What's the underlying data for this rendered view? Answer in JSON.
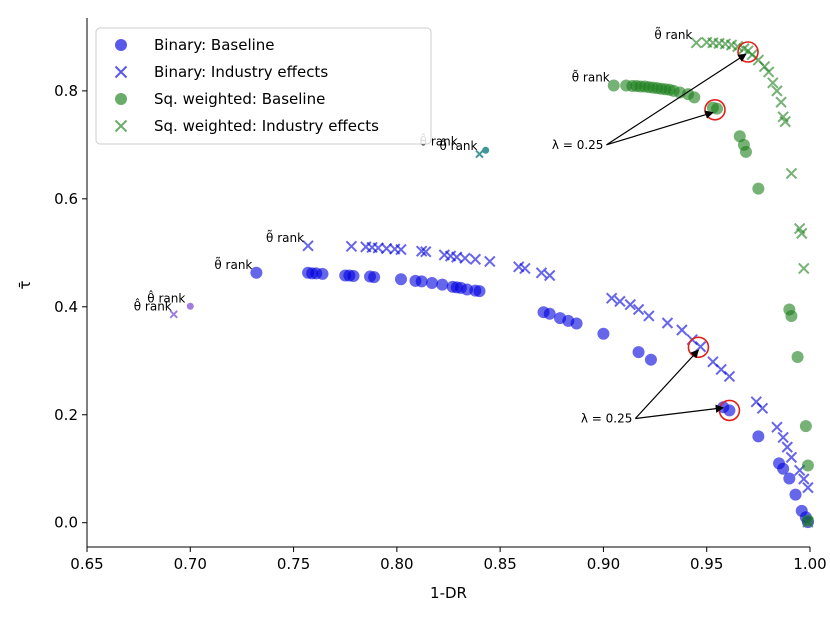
{
  "chart_data": {
    "type": "scatter",
    "title": "",
    "xlabel": "1-DR",
    "ylabel": "τ̄",
    "xlim": [
      0.65,
      1.0
    ],
    "ylim": [
      -0.045,
      0.935
    ],
    "xticks": [
      0.65,
      0.7,
      0.75,
      0.8,
      0.85,
      0.9,
      0.95,
      1.0
    ],
    "xtick_labels": [
      "0.65",
      "0.70",
      "0.75",
      "0.80",
      "0.85",
      "0.90",
      "0.95",
      "1.00"
    ],
    "yticks": [
      0.0,
      0.2,
      0.4,
      0.6,
      0.8
    ],
    "ytick_labels": [
      "0.0",
      "0.2",
      "0.4",
      "0.6",
      "0.8"
    ],
    "grid": false,
    "legend_position": "top-left",
    "colors": {
      "blue": "#0000dd",
      "green": "#1a7f1a",
      "purple": "#9370db",
      "teal": "#2a8c8c",
      "red": "#e0201b"
    },
    "series": [
      {
        "name": "Binary: Baseline",
        "marker": "circle",
        "color": "#0000dd",
        "points": [
          [
            0.732,
            0.463
          ],
          [
            0.757,
            0.463
          ],
          [
            0.759,
            0.462
          ],
          [
            0.761,
            0.462
          ],
          [
            0.764,
            0.461
          ],
          [
            0.775,
            0.458
          ],
          [
            0.777,
            0.458
          ],
          [
            0.779,
            0.457
          ],
          [
            0.787,
            0.456
          ],
          [
            0.789,
            0.455
          ],
          [
            0.802,
            0.451
          ],
          [
            0.809,
            0.448
          ],
          [
            0.812,
            0.447
          ],
          [
            0.817,
            0.444
          ],
          [
            0.822,
            0.441
          ],
          [
            0.827,
            0.437
          ],
          [
            0.829,
            0.436
          ],
          [
            0.831,
            0.435
          ],
          [
            0.834,
            0.432
          ],
          [
            0.838,
            0.43
          ],
          [
            0.84,
            0.429
          ],
          [
            0.871,
            0.39
          ],
          [
            0.874,
            0.387
          ],
          [
            0.879,
            0.379
          ],
          [
            0.883,
            0.374
          ],
          [
            0.887,
            0.369
          ],
          [
            0.9,
            0.35
          ],
          [
            0.917,
            0.316
          ],
          [
            0.923,
            0.302
          ],
          [
            0.958,
            0.214
          ],
          [
            0.961,
            0.208
          ],
          [
            0.975,
            0.16
          ],
          [
            0.985,
            0.11
          ],
          [
            0.987,
            0.1
          ],
          [
            0.99,
            0.082
          ],
          [
            0.993,
            0.052
          ],
          [
            0.996,
            0.022
          ],
          [
            0.998,
            0.01
          ],
          [
            0.999,
            0.001
          ]
        ]
      },
      {
        "name": "Binary: Industry effects",
        "marker": "x",
        "color": "#0000dd",
        "points": [
          [
            0.757,
            0.513
          ],
          [
            0.778,
            0.512
          ],
          [
            0.785,
            0.511
          ],
          [
            0.788,
            0.51
          ],
          [
            0.791,
            0.509
          ],
          [
            0.795,
            0.508
          ],
          [
            0.799,
            0.507
          ],
          [
            0.802,
            0.506
          ],
          [
            0.812,
            0.503
          ],
          [
            0.814,
            0.502
          ],
          [
            0.823,
            0.496
          ],
          [
            0.826,
            0.494
          ],
          [
            0.829,
            0.492
          ],
          [
            0.833,
            0.49
          ],
          [
            0.838,
            0.488
          ],
          [
            0.845,
            0.484
          ],
          [
            0.859,
            0.474
          ],
          [
            0.862,
            0.471
          ],
          [
            0.87,
            0.463
          ],
          [
            0.874,
            0.458
          ],
          [
            0.904,
            0.416
          ],
          [
            0.908,
            0.41
          ],
          [
            0.913,
            0.404
          ],
          [
            0.917,
            0.395
          ],
          [
            0.922,
            0.383
          ],
          [
            0.931,
            0.37
          ],
          [
            0.938,
            0.357
          ],
          [
            0.943,
            0.339
          ],
          [
            0.947,
            0.326
          ],
          [
            0.953,
            0.298
          ],
          [
            0.957,
            0.284
          ],
          [
            0.961,
            0.271
          ],
          [
            0.974,
            0.224
          ],
          [
            0.977,
            0.212
          ],
          [
            0.984,
            0.177
          ],
          [
            0.987,
            0.158
          ],
          [
            0.989,
            0.14
          ],
          [
            0.991,
            0.121
          ],
          [
            0.995,
            0.097
          ],
          [
            0.997,
            0.081
          ],
          [
            0.999,
            0.065
          ]
        ]
      },
      {
        "name": "Sq. weighted: Baseline",
        "marker": "circle",
        "color": "#1a7f1a",
        "points": [
          [
            0.905,
            0.81
          ],
          [
            0.911,
            0.81
          ],
          [
            0.914,
            0.809
          ],
          [
            0.916,
            0.809
          ],
          [
            0.918,
            0.808
          ],
          [
            0.92,
            0.808
          ],
          [
            0.922,
            0.807
          ],
          [
            0.924,
            0.806
          ],
          [
            0.926,
            0.805
          ],
          [
            0.928,
            0.804
          ],
          [
            0.93,
            0.803
          ],
          [
            0.932,
            0.802
          ],
          [
            0.934,
            0.8
          ],
          [
            0.937,
            0.797
          ],
          [
            0.941,
            0.794
          ],
          [
            0.944,
            0.788
          ],
          [
            0.953,
            0.769
          ],
          [
            0.955,
            0.767
          ],
          [
            0.966,
            0.716
          ],
          [
            0.968,
            0.7
          ],
          [
            0.969,
            0.687
          ],
          [
            0.975,
            0.619
          ],
          [
            0.99,
            0.395
          ],
          [
            0.991,
            0.383
          ],
          [
            0.994,
            0.307
          ],
          [
            0.998,
            0.179
          ],
          [
            0.999,
            0.106
          ],
          [
            0.999,
            0.004
          ]
        ]
      },
      {
        "name": "Sq. weighted: Industry effects",
        "marker": "x",
        "color": "#1a7f1a",
        "points": [
          [
            0.945,
            0.889
          ],
          [
            0.95,
            0.89
          ],
          [
            0.953,
            0.889
          ],
          [
            0.956,
            0.888
          ],
          [
            0.959,
            0.887
          ],
          [
            0.962,
            0.885
          ],
          [
            0.965,
            0.882
          ],
          [
            0.968,
            0.878
          ],
          [
            0.97,
            0.874
          ],
          [
            0.972,
            0.867
          ],
          [
            0.975,
            0.857
          ],
          [
            0.978,
            0.845
          ],
          [
            0.98,
            0.835
          ],
          [
            0.982,
            0.815
          ],
          [
            0.984,
            0.8
          ],
          [
            0.986,
            0.779
          ],
          [
            0.987,
            0.752
          ],
          [
            0.988,
            0.743
          ],
          [
            0.991,
            0.647
          ],
          [
            0.995,
            0.545
          ],
          [
            0.996,
            0.536
          ],
          [
            0.997,
            0.471
          ],
          [
            0.999,
            0.001
          ]
        ]
      }
    ],
    "extra_points": [
      {
        "marker": "circle",
        "color": "#9370db",
        "x": 0.7,
        "y": 0.401
      },
      {
        "marker": "x",
        "color": "#9370db",
        "x": 0.692,
        "y": 0.386
      },
      {
        "marker": "circle",
        "color": "#2a8c8c",
        "x": 0.843,
        "y": 0.69
      },
      {
        "marker": "x",
        "color": "#2a8c8c",
        "x": 0.84,
        "y": 0.683
      }
    ],
    "point_labels": [
      {
        "text": "θ̂ rank",
        "x": 0.7,
        "y": 0.401
      },
      {
        "text": "θ̂ rank",
        "x": 0.692,
        "y": 0.386
      },
      {
        "text": "θ̃ rank",
        "x": 0.732,
        "y": 0.463
      },
      {
        "text": "θ̃ rank",
        "x": 0.757,
        "y": 0.513
      },
      {
        "text": "θ̂ rank",
        "x": 0.843,
        "y": 0.69
      },
      {
        "text": "θ̂ rank",
        "x": 0.84,
        "y": 0.683
      },
      {
        "text": "θ̃ rank",
        "x": 0.905,
        "y": 0.81
      },
      {
        "text": "θ̃ rank",
        "x": 0.945,
        "y": 0.889
      }
    ],
    "highlight_circles": [
      {
        "x": 0.97,
        "y": 0.872
      },
      {
        "x": 0.954,
        "y": 0.765
      },
      {
        "x": 0.946,
        "y": 0.325
      },
      {
        "x": 0.961,
        "y": 0.208
      }
    ],
    "annotations": [
      {
        "text": "λ = 0.25",
        "x": 0.9,
        "y": 0.7,
        "targets": [
          [
            0.969,
            0.868
          ],
          [
            0.953,
            0.76
          ]
        ]
      },
      {
        "text": "λ = 0.25",
        "x": 0.914,
        "y": 0.193,
        "targets": [
          [
            0.946,
            0.32
          ],
          [
            0.958,
            0.213
          ]
        ]
      }
    ]
  }
}
